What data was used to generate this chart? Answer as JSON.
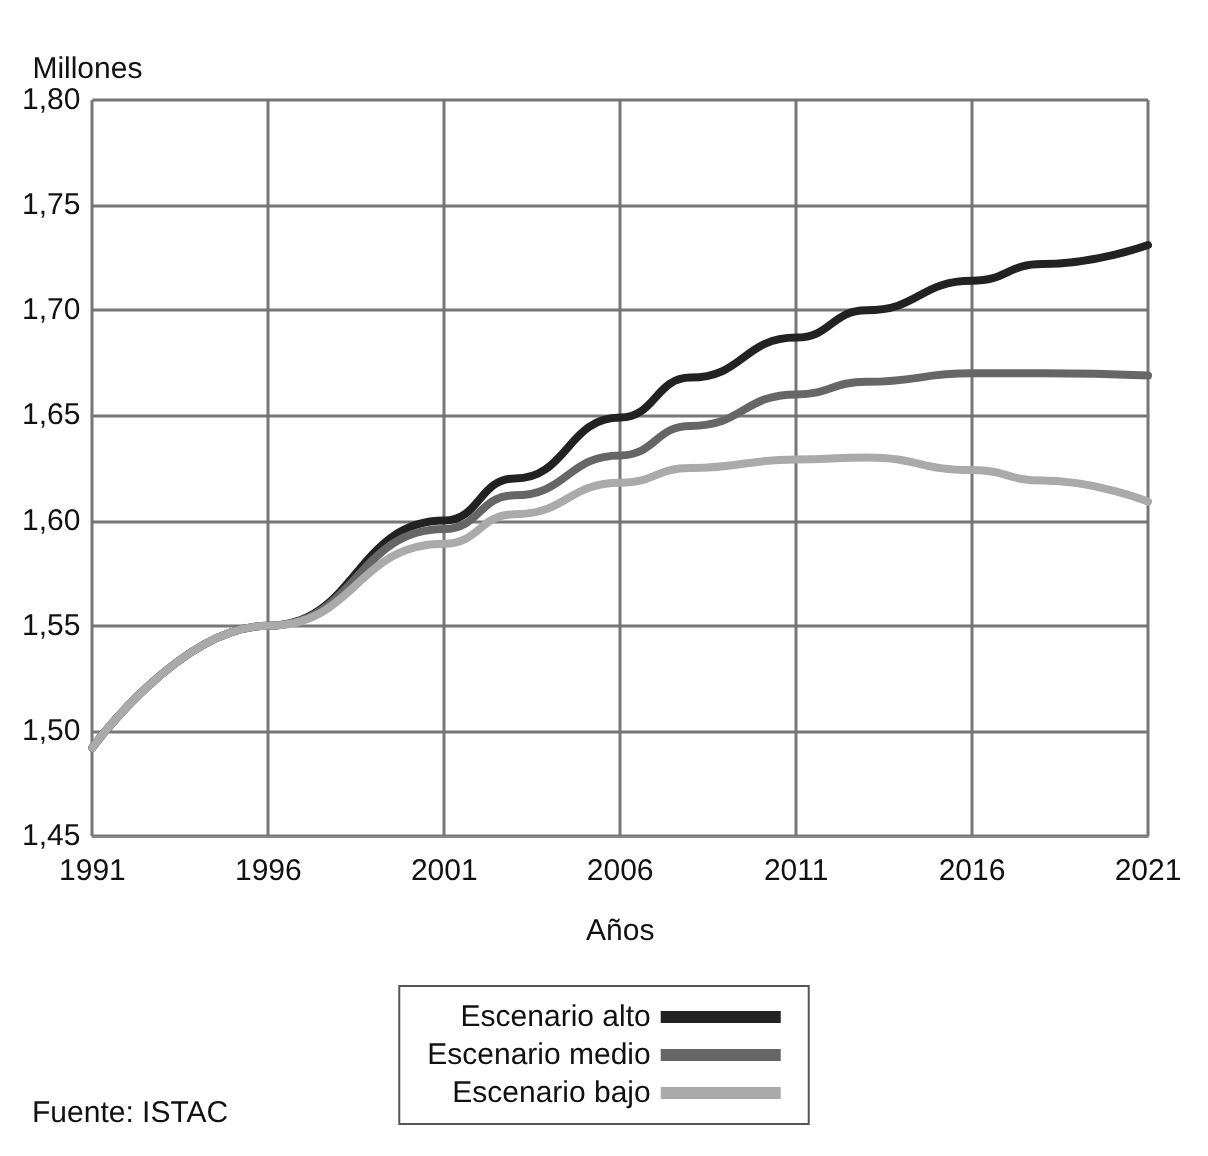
{
  "chart_data": {
    "type": "line",
    "ylabel": "Millones",
    "xlabel": "Años",
    "x": [
      1991,
      1996,
      2001,
      2003,
      2006,
      2008,
      2011,
      2013,
      2016,
      2018,
      2021
    ],
    "series": [
      {
        "name": "Escenario alto",
        "color": "#222222",
        "values": [
          1.492,
          1.55,
          1.6,
          1.62,
          1.649,
          1.668,
          1.687,
          1.7,
          1.714,
          1.722,
          1.731
        ]
      },
      {
        "name": "Escenario medio",
        "color": "#666666",
        "values": [
          1.492,
          1.55,
          1.596,
          1.612,
          1.631,
          1.645,
          1.66,
          1.666,
          1.67,
          1.67,
          1.669
        ]
      },
      {
        "name": "Escenario bajo",
        "color": "#aaaaaa",
        "values": [
          1.492,
          1.55,
          1.589,
          1.603,
          1.618,
          1.625,
          1.629,
          1.63,
          1.624,
          1.619,
          1.609
        ]
      }
    ],
    "xlim": [
      1991,
      2021
    ],
    "xticks": [
      1991,
      1996,
      2001,
      2006,
      2011,
      2016,
      2021
    ],
    "ylim": [
      1.45,
      1.8
    ],
    "yticks": [
      {
        "value": 1.45,
        "label": "1,45"
      },
      {
        "value": 1.5,
        "label": "1,50"
      },
      {
        "value": 1.55,
        "label": "1,55"
      },
      {
        "value": 1.6,
        "label": "1,60"
      },
      {
        "value": 1.65,
        "label": "1,65"
      },
      {
        "value": 1.7,
        "label": "1,70"
      },
      {
        "value": 1.75,
        "label": "1,75"
      },
      {
        "value": 1.8,
        "label": "1,80"
      }
    ],
    "grid": true,
    "legend": "bottom",
    "marker": "none",
    "line_style": "solid",
    "annotations": [
      "Fuente: ISTAC"
    ]
  }
}
